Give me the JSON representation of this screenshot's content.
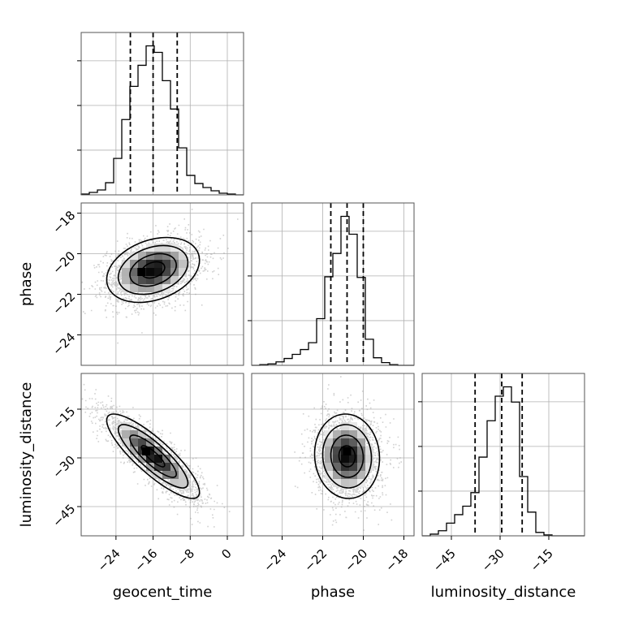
{
  "chart_data": {
    "type": "corner",
    "parameters": [
      "geocent_time",
      "phase",
      "luminosity_distance"
    ],
    "axis_ranges": {
      "geocent_time": [
        -31.5,
        3.5
      ],
      "phase": [
        -25.5,
        -17.5
      ],
      "luminosity_distance": [
        -54,
        -4
      ]
    },
    "ticks": {
      "geocent_time": [
        -24,
        -16,
        -8,
        0
      ],
      "phase": [
        -24,
        -22,
        -20,
        -18
      ],
      "luminosity_distance": [
        -45,
        -30,
        -15
      ]
    },
    "tick_labels": {
      "geocent_time": [
        "−24",
        "−16",
        "−8",
        "0"
      ],
      "phase": [
        "−24",
        "−22",
        "−20",
        "−18"
      ],
      "luminosity_distance": [
        "−45",
        "−30",
        "−15"
      ]
    },
    "quantiles": {
      "geocent_time": [
        -20.9,
        -16.0,
        -10.8
      ],
      "phase": [
        -21.6,
        -20.8,
        -20.0
      ],
      "luminosity_distance": [
        -37.7,
        -29.5,
        -23.2
      ]
    },
    "histograms": {
      "geocent_time": {
        "edges": [
          -31.5,
          -29.75,
          -28,
          -26.25,
          -24.5,
          -22.75,
          -21,
          -19.25,
          -17.5,
          -15.75,
          -14,
          -12.25,
          -10.5,
          -8.75,
          -7,
          -5.25,
          -3.5,
          -1.75,
          0,
          1.75,
          3.5
        ],
        "counts": [
          1,
          3,
          6,
          15,
          45,
          93,
          134,
          160,
          184,
          176,
          141,
          106,
          58,
          24,
          14,
          9,
          5,
          2,
          1,
          0
        ]
      },
      "phase": {
        "edges": [
          -25.5,
          -25.1,
          -24.7,
          -24.3,
          -23.9,
          -23.5,
          -23.1,
          -22.7,
          -22.3,
          -21.9,
          -21.5,
          -21.1,
          -20.7,
          -20.3,
          -19.9,
          -19.5,
          -19.1,
          -18.7,
          -18.3,
          -17.9,
          -17.5
        ],
        "counts": [
          0,
          1,
          2,
          5,
          10,
          16,
          23,
          33,
          68,
          129,
          163,
          217,
          191,
          128,
          38,
          11,
          4,
          1,
          0,
          0
        ]
      },
      "luminosity_distance": {
        "edges": [
          -54,
          -51.5,
          -49,
          -46.5,
          -44,
          -41.5,
          -39,
          -36.5,
          -34,
          -31.5,
          -29,
          -26.5,
          -24,
          -21.5,
          -19,
          -16.5,
          -14,
          -11.5,
          -9,
          -6.5,
          -4
        ],
        "counts": [
          0,
          2,
          6,
          15,
          25,
          35,
          51,
          93,
          136,
          165,
          176,
          158,
          70,
          28,
          4,
          1,
          0,
          0,
          0,
          0
        ]
      }
    },
    "pairs": [
      {
        "x": "geocent_time",
        "y": "phase",
        "mean": [
          -16.0,
          -20.8
        ],
        "sd": [
          5.0,
          0.8
        ],
        "correlation": 0.3,
        "peak": [
          -18.5,
          -20.9
        ],
        "contour_levels_sigma": [
          0.5,
          1.0,
          1.5,
          2.0
        ]
      },
      {
        "x": "geocent_time",
        "y": "luminosity_distance",
        "mean": [
          -16.0,
          -29.5
        ],
        "sd": [
          5.0,
          6.5
        ],
        "correlation": -0.85,
        "peak": [
          -17.5,
          -28.0
        ],
        "contour_levels_sigma": [
          0.5,
          1.0,
          1.5,
          2.0
        ]
      },
      {
        "x": "phase",
        "y": "luminosity_distance",
        "mean": [
          -20.8,
          -29.5
        ],
        "sd": [
          0.8,
          6.5
        ],
        "correlation": -0.05,
        "peak": [
          -20.8,
          -28.0
        ],
        "contour_levels_sigma": [
          0.5,
          1.0,
          1.5,
          2.0
        ]
      }
    ],
    "grid": true,
    "colors": {
      "lines": "#000000",
      "grid": "#b0b0b0",
      "points": "#9a9a9a",
      "background": "#ffffff"
    }
  }
}
